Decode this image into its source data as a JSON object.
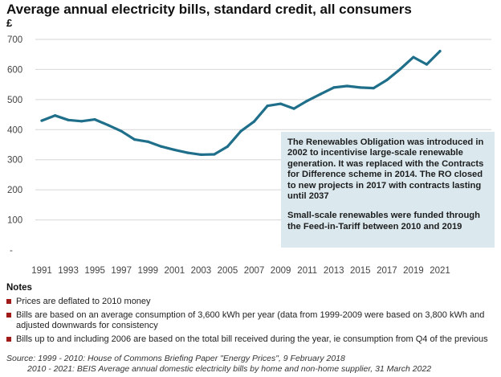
{
  "chart_data": {
    "type": "line",
    "title": "Average annual electricity bills, standard credit, all consumers",
    "ylabel": "£",
    "xlabel": "",
    "ylim": [
      0,
      700
    ],
    "yticks": [
      700,
      600,
      500,
      400,
      300,
      200,
      100
    ],
    "y_zero_label": "-",
    "grid": "horizontal",
    "x_tick_labels": [
      "1991",
      "1993",
      "1995",
      "1997",
      "1999",
      "2001",
      "2003",
      "2005",
      "2007",
      "2009",
      "2011",
      "2013",
      "2015",
      "2017",
      "2019",
      "2021"
    ],
    "color": "#1f6f8b",
    "x": [
      1991,
      1992,
      1993,
      1994,
      1995,
      1996,
      1997,
      1998,
      1999,
      2000,
      2001,
      2002,
      2003,
      2004,
      2005,
      2006,
      2007,
      2008,
      2009,
      2010,
      2011,
      2012,
      2013,
      2014,
      2015,
      2016,
      2017,
      2018,
      2019,
      2020,
      2021
    ],
    "values": [
      430,
      447,
      432,
      428,
      434,
      415,
      395,
      367,
      360,
      344,
      333,
      323,
      317,
      318,
      344,
      395,
      427,
      479,
      486,
      470,
      496,
      518,
      540,
      545,
      540,
      538,
      565,
      601,
      641,
      617,
      661
    ]
  },
  "annotation": {
    "paragraph1": "The Renewables Obligation was introduced in 2002 to incentivise large-scale renewable generation. It was replaced with the Contracts for Difference scheme in 2014. The RO closed to new projects in 2017 with contracts lasting until 2037",
    "paragraph2": "Small-scale renewables were funded through the Feed-in-Tariff between 2010 and  2019"
  },
  "notes": {
    "title": "Notes",
    "items": [
      "Prices are deflated to 2010 money",
      "Bills are based on an average consumption of 3,600 kWh per year (data from 1999-2009 were based on 3,800 kWh and adjusted downwards for consistency",
      "Bills up to and including 2006 are based on the total bill received during the year, ie consumption from Q4 of the previous"
    ]
  },
  "source": {
    "line1": "Source: 1999 - 2010: House of Commons Briefing Paper \"Energy Prices\", 9 February 2018",
    "line2": "2010 - 2021: BEIS Average annual domestic electricity bills by home and non-home supplier, 31 March 2022"
  },
  "colors": {
    "line": "#1f6f8b",
    "annotation_bg": "#dbe9ef",
    "bullet": "#a01a1a"
  }
}
